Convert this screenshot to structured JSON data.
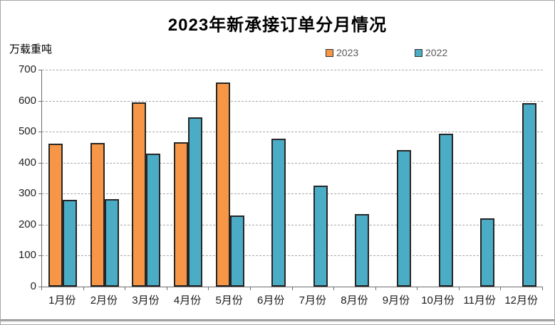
{
  "chart": {
    "title": "2023年新承接订单分月情况",
    "unit_label": "万载重吨"
  },
  "chart_data": {
    "type": "bar",
    "title": "2023年新承接订单分月情况",
    "ylabel": "万载重吨",
    "xlabel": "",
    "categories": [
      "1月份",
      "2月份",
      "3月份",
      "4月份",
      "5月份",
      "6月份",
      "7月份",
      "8月份",
      "9月份",
      "10月份",
      "11月份",
      "12月份"
    ],
    "series": [
      {
        "name": "2023",
        "color": "#F79646",
        "values": [
          462,
          464,
          595,
          467,
          658,
          null,
          null,
          null,
          null,
          null,
          null,
          null
        ]
      },
      {
        "name": "2022",
        "color": "#4BACC6",
        "values": [
          281,
          283,
          430,
          546,
          230,
          477,
          326,
          233,
          441,
          493,
          220,
          592
        ]
      }
    ],
    "ylim": [
      0,
      700
    ],
    "yticks": [
      0,
      100,
      200,
      300,
      400,
      500,
      600,
      700
    ],
    "grid": "horizontal-dashed",
    "legend_position": "top-center",
    "bar_border_color": "#262626",
    "axis_color": "#6b6b6b"
  }
}
